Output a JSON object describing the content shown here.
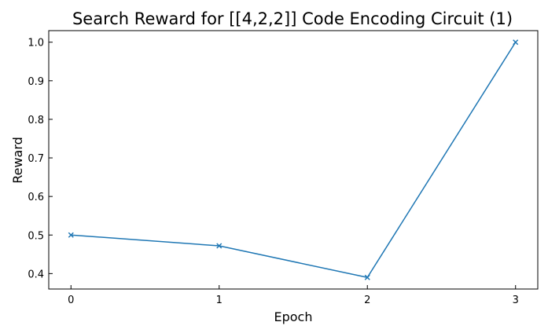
{
  "chart_data": {
    "type": "line",
    "title": "Search Reward for [[4,2,2]] Code Encoding Circuit (1)",
    "xlabel": "Epoch",
    "ylabel": "Reward",
    "x": [
      0,
      1,
      2,
      3
    ],
    "series": [
      {
        "values": [
          0.5,
          0.472,
          0.39,
          1.0
        ],
        "color": "#1f77b4",
        "marker": "x"
      }
    ],
    "xlim": [
      -0.15,
      3.15
    ],
    "ylim": [
      0.36,
      1.03
    ],
    "xticks": [
      0,
      1,
      2,
      3
    ],
    "xtick_labels": [
      "0",
      "1",
      "2",
      "3"
    ],
    "yticks": [
      0.4,
      0.5,
      0.6,
      0.7,
      0.8,
      0.9,
      1.0
    ],
    "ytick_labels": [
      "0.4",
      "0.5",
      "0.6",
      "0.7",
      "0.8",
      "0.9",
      "1.0"
    ],
    "grid": false,
    "legend": "none"
  }
}
